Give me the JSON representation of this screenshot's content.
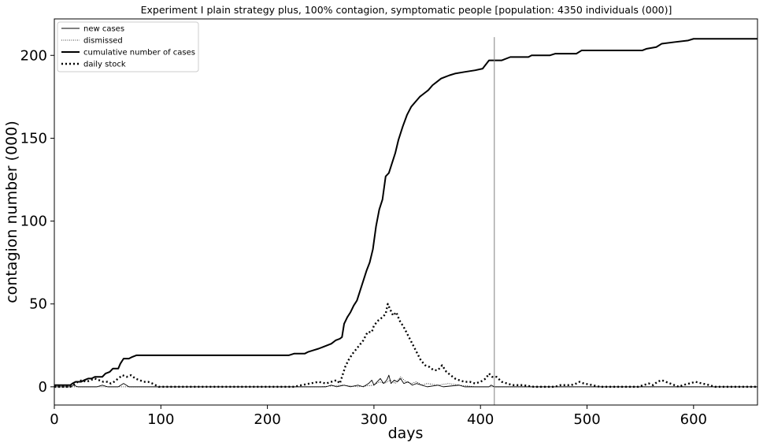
{
  "chart_data": {
    "type": "line",
    "title": "Experiment I plain strategy plus, 100% contagion, symptomatic people [population: 4350 individuals (000)]",
    "xlabel": "days",
    "ylabel": "contagion number (000)",
    "xlim": [
      0,
      660
    ],
    "ylim": [
      -11,
      222
    ],
    "xticks": [
      0,
      100,
      200,
      300,
      400,
      500,
      600
    ],
    "xtick_labels": [
      "0",
      "100",
      "200",
      "300",
      "400",
      "500",
      "600"
    ],
    "yticks": [
      0,
      50,
      100,
      150,
      200
    ],
    "ytick_labels": [
      "0",
      "50",
      "100",
      "150",
      "200"
    ],
    "grid": false,
    "legend_position": "top-left",
    "vline": {
      "x": 413,
      "y_top": 211,
      "color": "#808080"
    },
    "series": [
      {
        "name": "new cases",
        "style": "solid-thin",
        "color": "#000000",
        "points": [
          [
            0,
            0
          ],
          [
            15,
            0
          ],
          [
            18,
            1
          ],
          [
            22,
            0
          ],
          [
            40,
            0
          ],
          [
            45,
            1
          ],
          [
            50,
            0
          ],
          [
            60,
            0
          ],
          [
            65,
            2
          ],
          [
            70,
            0
          ],
          [
            100,
            0
          ],
          [
            255,
            0
          ],
          [
            260,
            1
          ],
          [
            265,
            0
          ],
          [
            272,
            1
          ],
          [
            278,
            0
          ],
          [
            285,
            1
          ],
          [
            290,
            0
          ],
          [
            295,
            2
          ],
          [
            298,
            4
          ],
          [
            300,
            1
          ],
          [
            303,
            3
          ],
          [
            306,
            5
          ],
          [
            309,
            2
          ],
          [
            312,
            4
          ],
          [
            314,
            7
          ],
          [
            316,
            2
          ],
          [
            319,
            4
          ],
          [
            322,
            3
          ],
          [
            325,
            5
          ],
          [
            328,
            2
          ],
          [
            332,
            3
          ],
          [
            336,
            1
          ],
          [
            340,
            2
          ],
          [
            345,
            1
          ],
          [
            350,
            0
          ],
          [
            360,
            1
          ],
          [
            365,
            0
          ],
          [
            380,
            1
          ],
          [
            385,
            0
          ],
          [
            408,
            0
          ],
          [
            410,
            1
          ],
          [
            413,
            0
          ],
          [
            660,
            0
          ]
        ]
      },
      {
        "name": "dismissed",
        "style": "dotted-thin",
        "color": "#000000",
        "points": [
          [
            0,
            0
          ],
          [
            250,
            0
          ],
          [
            270,
            1
          ],
          [
            285,
            0
          ],
          [
            300,
            1
          ],
          [
            305,
            3
          ],
          [
            310,
            2
          ],
          [
            315,
            4
          ],
          [
            320,
            2
          ],
          [
            325,
            6
          ],
          [
            330,
            3
          ],
          [
            335,
            2
          ],
          [
            340,
            3
          ],
          [
            345,
            1
          ],
          [
            350,
            2
          ],
          [
            360,
            1
          ],
          [
            370,
            2
          ],
          [
            380,
            1
          ],
          [
            395,
            0
          ],
          [
            660,
            0
          ]
        ]
      },
      {
        "name": "cumulative number of cases",
        "style": "solid-thick",
        "color": "#000000",
        "points": [
          [
            0,
            1
          ],
          [
            15,
            1
          ],
          [
            17,
            2
          ],
          [
            20,
            3
          ],
          [
            25,
            3
          ],
          [
            28,
            4
          ],
          [
            32,
            5
          ],
          [
            35,
            5
          ],
          [
            38,
            6
          ],
          [
            45,
            6
          ],
          [
            48,
            8
          ],
          [
            52,
            9
          ],
          [
            55,
            11
          ],
          [
            60,
            11
          ],
          [
            62,
            14
          ],
          [
            65,
            17
          ],
          [
            70,
            17
          ],
          [
            73,
            18
          ],
          [
            77,
            19
          ],
          [
            220,
            19
          ],
          [
            225,
            20
          ],
          [
            235,
            20
          ],
          [
            238,
            21
          ],
          [
            243,
            22
          ],
          [
            248,
            23
          ],
          [
            252,
            24
          ],
          [
            256,
            25
          ],
          [
            260,
            26
          ],
          [
            264,
            28
          ],
          [
            268,
            29
          ],
          [
            270,
            30
          ],
          [
            272,
            38
          ],
          [
            275,
            42
          ],
          [
            278,
            45
          ],
          [
            281,
            49
          ],
          [
            284,
            52
          ],
          [
            287,
            58
          ],
          [
            290,
            64
          ],
          [
            293,
            70
          ],
          [
            296,
            75
          ],
          [
            299,
            83
          ],
          [
            302,
            97
          ],
          [
            305,
            107
          ],
          [
            308,
            113
          ],
          [
            311,
            127
          ],
          [
            314,
            129
          ],
          [
            317,
            135
          ],
          [
            320,
            141
          ],
          [
            323,
            149
          ],
          [
            327,
            157
          ],
          [
            331,
            164
          ],
          [
            335,
            169
          ],
          [
            339,
            172
          ],
          [
            343,
            175
          ],
          [
            347,
            177
          ],
          [
            351,
            179
          ],
          [
            355,
            182
          ],
          [
            359,
            184
          ],
          [
            363,
            186
          ],
          [
            367,
            187
          ],
          [
            371,
            188
          ],
          [
            376,
            189
          ],
          [
            385,
            190
          ],
          [
            395,
            191
          ],
          [
            402,
            192
          ],
          [
            408,
            197
          ],
          [
            420,
            197
          ],
          [
            428,
            199
          ],
          [
            445,
            199
          ],
          [
            448,
            200
          ],
          [
            465,
            200
          ],
          [
            470,
            201
          ],
          [
            490,
            201
          ],
          [
            495,
            203
          ],
          [
            552,
            203
          ],
          [
            556,
            204
          ],
          [
            565,
            205
          ],
          [
            570,
            207
          ],
          [
            582,
            208
          ],
          [
            595,
            209
          ],
          [
            600,
            210
          ],
          [
            660,
            210
          ]
        ]
      },
      {
        "name": "daily stock",
        "style": "dotted-thick",
        "color": "#000000",
        "points": [
          [
            0,
            0
          ],
          [
            15,
            0
          ],
          [
            18,
            1
          ],
          [
            22,
            3
          ],
          [
            26,
            4
          ],
          [
            30,
            3
          ],
          [
            34,
            4
          ],
          [
            38,
            5
          ],
          [
            42,
            4
          ],
          [
            46,
            3
          ],
          [
            50,
            3
          ],
          [
            53,
            2
          ],
          [
            56,
            3
          ],
          [
            60,
            5
          ],
          [
            64,
            7
          ],
          [
            68,
            6
          ],
          [
            72,
            7
          ],
          [
            76,
            5
          ],
          [
            80,
            4
          ],
          [
            84,
            3
          ],
          [
            88,
            3
          ],
          [
            92,
            2
          ],
          [
            98,
            0
          ],
          [
            225,
            0
          ],
          [
            232,
            1
          ],
          [
            240,
            2
          ],
          [
            248,
            3
          ],
          [
            255,
            2
          ],
          [
            260,
            3
          ],
          [
            265,
            4
          ],
          [
            268,
            2
          ],
          [
            270,
            6
          ],
          [
            273,
            12
          ],
          [
            276,
            16
          ],
          [
            280,
            20
          ],
          [
            285,
            24
          ],
          [
            290,
            28
          ],
          [
            294,
            33
          ],
          [
            298,
            33
          ],
          [
            300,
            37
          ],
          [
            304,
            40
          ],
          [
            308,
            42
          ],
          [
            311,
            44
          ],
          [
            313,
            50
          ],
          [
            315,
            47
          ],
          [
            318,
            43
          ],
          [
            321,
            45
          ],
          [
            324,
            40
          ],
          [
            328,
            36
          ],
          [
            332,
            31
          ],
          [
            336,
            26
          ],
          [
            340,
            21
          ],
          [
            344,
            16
          ],
          [
            348,
            13
          ],
          [
            352,
            12
          ],
          [
            356,
            10
          ],
          [
            360,
            10
          ],
          [
            364,
            13
          ],
          [
            368,
            9
          ],
          [
            372,
            7
          ],
          [
            376,
            5
          ],
          [
            380,
            4
          ],
          [
            385,
            3
          ],
          [
            390,
            3
          ],
          [
            395,
            2
          ],
          [
            400,
            3
          ],
          [
            405,
            5
          ],
          [
            408,
            8
          ],
          [
            411,
            6
          ],
          [
            415,
            6
          ],
          [
            420,
            3
          ],
          [
            425,
            2
          ],
          [
            430,
            1
          ],
          [
            440,
            1
          ],
          [
            450,
            0
          ],
          [
            470,
            0
          ],
          [
            475,
            1
          ],
          [
            485,
            1
          ],
          [
            490,
            2
          ],
          [
            493,
            3
          ],
          [
            497,
            2
          ],
          [
            505,
            1
          ],
          [
            512,
            0
          ],
          [
            548,
            0
          ],
          [
            553,
            1
          ],
          [
            558,
            2
          ],
          [
            562,
            1
          ],
          [
            566,
            3
          ],
          [
            570,
            4
          ],
          [
            574,
            3
          ],
          [
            578,
            2
          ],
          [
            582,
            1
          ],
          [
            586,
            0
          ],
          [
            590,
            1
          ],
          [
            596,
            2
          ],
          [
            602,
            3
          ],
          [
            608,
            2
          ],
          [
            615,
            1
          ],
          [
            620,
            0
          ],
          [
            660,
            0
          ]
        ]
      }
    ]
  }
}
